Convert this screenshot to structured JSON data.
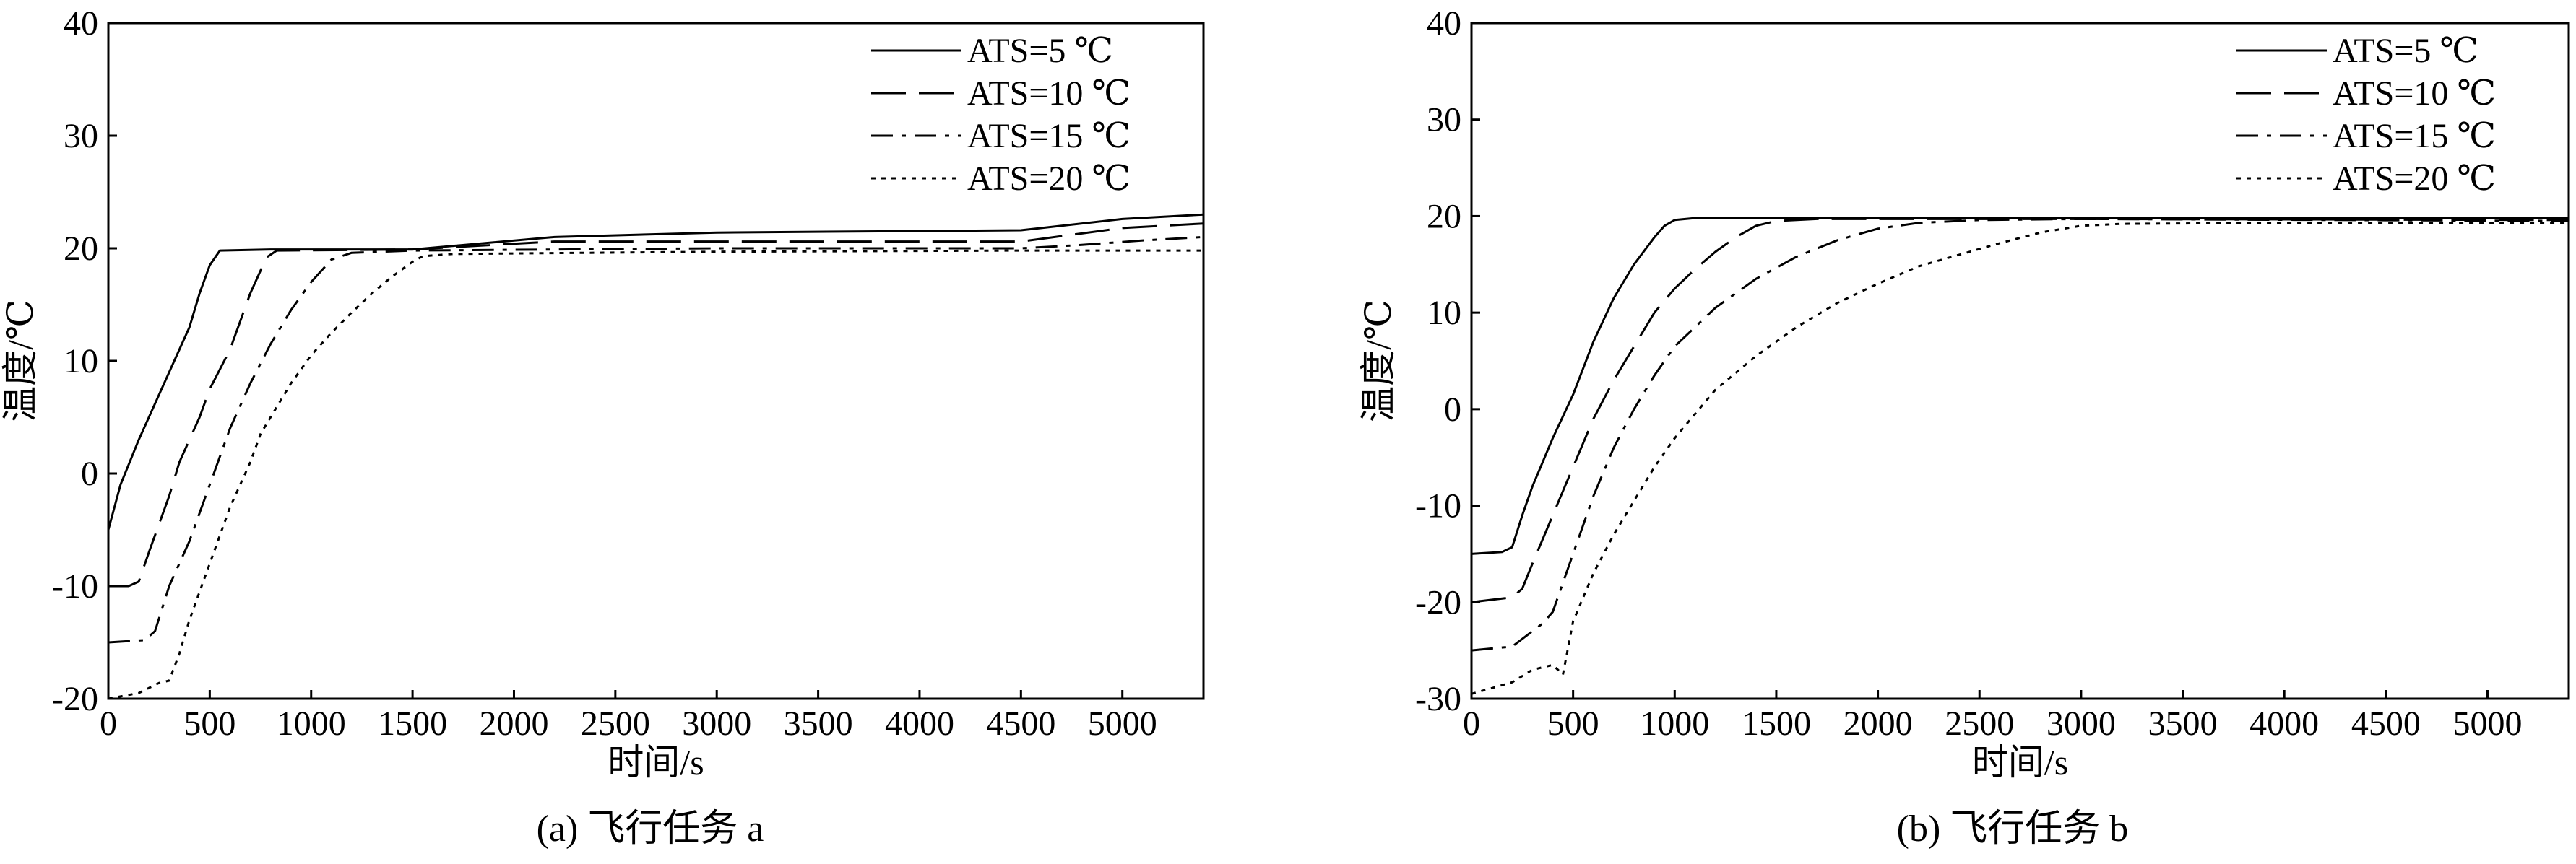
{
  "chart_data": [
    {
      "type": "line",
      "caption": "(a) 飞行任务 a",
      "xlabel": "时间/s",
      "ylabel": "温度/℃",
      "xlim": [
        0,
        5400
      ],
      "ylim": [
        -20,
        40
      ],
      "xticks": [
        0,
        500,
        1000,
        1500,
        2000,
        2500,
        3000,
        3500,
        4000,
        4500,
        5000
      ],
      "yticks": [
        -20,
        -10,
        0,
        10,
        20,
        30,
        40
      ],
      "grid": false,
      "legend_position": "top-right",
      "series": [
        {
          "name": "ATS=5 ℃",
          "dash": "solid",
          "points": [
            [
              0,
              -5
            ],
            [
              60,
              -1
            ],
            [
              150,
              3
            ],
            [
              250,
              7
            ],
            [
              300,
              9
            ],
            [
              400,
              13
            ],
            [
              450,
              16
            ],
            [
              500,
              18.5
            ],
            [
              550,
              19.8
            ],
            [
              800,
              19.9
            ],
            [
              1500,
              19.9
            ],
            [
              2200,
              21
            ],
            [
              3000,
              21.4
            ],
            [
              4500,
              21.6
            ],
            [
              5000,
              22.6
            ],
            [
              5400,
              23
            ]
          ]
        },
        {
          "name": "ATS=10 ℃",
          "dash": "longdash",
          "points": [
            [
              0,
              -10
            ],
            [
              100,
              -10
            ],
            [
              150,
              -9.6
            ],
            [
              200,
              -7
            ],
            [
              300,
              -2
            ],
            [
              350,
              1
            ],
            [
              450,
              5
            ],
            [
              500,
              7.5
            ],
            [
              600,
              11
            ],
            [
              700,
              16
            ],
            [
              780,
              19.2
            ],
            [
              830,
              19.8
            ],
            [
              1500,
              19.9
            ],
            [
              2200,
              20.6
            ],
            [
              3000,
              20.6
            ],
            [
              4500,
              20.6
            ],
            [
              5000,
              21.8
            ],
            [
              5400,
              22.2
            ]
          ]
        },
        {
          "name": "ATS=15 ℃",
          "dash": "dashdot",
          "points": [
            [
              0,
              -15
            ],
            [
              180,
              -14.8
            ],
            [
              230,
              -14
            ],
            [
              300,
              -10
            ],
            [
              400,
              -6
            ],
            [
              500,
              -1
            ],
            [
              600,
              4
            ],
            [
              700,
              8
            ],
            [
              800,
              11.5
            ],
            [
              900,
              14.5
            ],
            [
              1000,
              17
            ],
            [
              1100,
              19
            ],
            [
              1200,
              19.6
            ],
            [
              1500,
              19.8
            ],
            [
              3000,
              20
            ],
            [
              4500,
              20
            ],
            [
              4800,
              20.3
            ],
            [
              5100,
              20.7
            ],
            [
              5400,
              21
            ]
          ]
        },
        {
          "name": "ATS=20 ℃",
          "dash": "dotted",
          "points": [
            [
              0,
              -20
            ],
            [
              150,
              -19.5
            ],
            [
              250,
              -18.6
            ],
            [
              300,
              -18.4
            ],
            [
              350,
              -16
            ],
            [
              400,
              -13
            ],
            [
              500,
              -8
            ],
            [
              600,
              -3
            ],
            [
              700,
              1
            ],
            [
              750,
              3.5
            ],
            [
              800,
              5
            ],
            [
              900,
              8
            ],
            [
              1000,
              10.5
            ],
            [
              1100,
              12.5
            ],
            [
              1200,
              14.3
            ],
            [
              1300,
              16
            ],
            [
              1400,
              17.5
            ],
            [
              1500,
              18.8
            ],
            [
              1550,
              19.3
            ],
            [
              1700,
              19.5
            ],
            [
              3000,
              19.7
            ],
            [
              4500,
              19.8
            ],
            [
              5400,
              19.8
            ]
          ]
        }
      ]
    },
    {
      "type": "line",
      "caption": "(b) 飞行任务 b",
      "xlabel": "时间/s",
      "ylabel": "温度/℃",
      "xlim": [
        0,
        5400
      ],
      "ylim": [
        -30,
        40
      ],
      "xticks": [
        0,
        500,
        1000,
        1500,
        2000,
        2500,
        3000,
        3500,
        4000,
        4500,
        5000
      ],
      "yticks": [
        -30,
        -20,
        -10,
        0,
        10,
        20,
        30,
        40
      ],
      "grid": false,
      "legend_position": "top-right",
      "series": [
        {
          "name": "ATS=5 ℃",
          "dash": "solid",
          "points": [
            [
              0,
              -15
            ],
            [
              150,
              -14.8
            ],
            [
              200,
              -14.3
            ],
            [
              250,
              -11
            ],
            [
              300,
              -8
            ],
            [
              400,
              -3
            ],
            [
              500,
              1.5
            ],
            [
              600,
              7
            ],
            [
              700,
              11.5
            ],
            [
              800,
              15
            ],
            [
              900,
              17.8
            ],
            [
              950,
              19
            ],
            [
              1000,
              19.6
            ],
            [
              1100,
              19.8
            ],
            [
              3000,
              19.8
            ],
            [
              5400,
              19.8
            ]
          ]
        },
        {
          "name": "ATS=10 ℃",
          "dash": "longdash",
          "points": [
            [
              0,
              -20
            ],
            [
              200,
              -19.5
            ],
            [
              250,
              -18.6
            ],
            [
              300,
              -16
            ],
            [
              400,
              -11
            ],
            [
              500,
              -6
            ],
            [
              600,
              -1
            ],
            [
              700,
              3
            ],
            [
              800,
              6.5
            ],
            [
              900,
              10
            ],
            [
              1000,
              12.5
            ],
            [
              1100,
              14.5
            ],
            [
              1200,
              16.3
            ],
            [
              1300,
              17.8
            ],
            [
              1400,
              19
            ],
            [
              1500,
              19.5
            ],
            [
              1700,
              19.7
            ],
            [
              3000,
              19.7
            ],
            [
              5400,
              19.6
            ]
          ]
        },
        {
          "name": "ATS=15 ℃",
          "dash": "dashdot",
          "points": [
            [
              0,
              -25
            ],
            [
              200,
              -24.6
            ],
            [
              300,
              -23
            ],
            [
              350,
              -22.2
            ],
            [
              400,
              -21
            ],
            [
              500,
              -15
            ],
            [
              600,
              -9
            ],
            [
              700,
              -4
            ],
            [
              800,
              0
            ],
            [
              900,
              3.5
            ],
            [
              1000,
              6.5
            ],
            [
              1200,
              10.5
            ],
            [
              1400,
              13.5
            ],
            [
              1600,
              15.8
            ],
            [
              1800,
              17.5
            ],
            [
              2000,
              18.7
            ],
            [
              2200,
              19.3
            ],
            [
              2500,
              19.6
            ],
            [
              3000,
              19.7
            ],
            [
              5400,
              19.5
            ]
          ]
        },
        {
          "name": "ATS=20 ℃",
          "dash": "dotted",
          "points": [
            [
              0,
              -29.5
            ],
            [
              200,
              -28.3
            ],
            [
              300,
              -27
            ],
            [
              400,
              -26.5
            ],
            [
              450,
              -27.5
            ],
            [
              500,
              -22
            ],
            [
              600,
              -17
            ],
            [
              700,
              -13
            ],
            [
              800,
              -9.5
            ],
            [
              900,
              -6
            ],
            [
              1000,
              -3
            ],
            [
              1200,
              2
            ],
            [
              1400,
              5.5
            ],
            [
              1600,
              8.5
            ],
            [
              1800,
              11
            ],
            [
              2000,
              13
            ],
            [
              2200,
              14.8
            ],
            [
              2400,
              16
            ],
            [
              2600,
              17.2
            ],
            [
              2800,
              18.3
            ],
            [
              3000,
              19
            ],
            [
              3200,
              19.2
            ],
            [
              4000,
              19.3
            ],
            [
              5400,
              19.3
            ]
          ]
        }
      ]
    }
  ]
}
